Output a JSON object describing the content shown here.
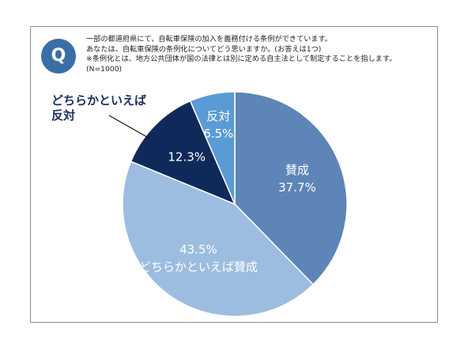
{
  "question": {
    "badge": "Q",
    "lines": [
      "一部の都道府県にて、自転車保険の加入を義務付ける条例ができています。",
      "あなたは、自転車保険の条例化についてどう思いますか。(お答えは1つ)",
      "※条例化とは、地方公共団体が国の法律とは別に定める自主法として制定することを指します。",
      "(N=1000)"
    ]
  },
  "chart_data": {
    "type": "pie",
    "title": "",
    "n": 1000,
    "start": "12 o'clock, clockwise",
    "slices": [
      {
        "label": "賛成",
        "value": 37.7,
        "value_text": "37.7%",
        "color": "#5d85b8",
        "label_inside": true
      },
      {
        "label": "どちらかといえば賛成",
        "value": 43.5,
        "value_text": "43.5%",
        "color": "#9dbde0",
        "label_inside": true
      },
      {
        "label": "どちらかといえば反対",
        "value": 12.3,
        "value_text": "12.3%",
        "color": "#0f2a5a",
        "label_inside": false
      },
      {
        "label": "反対",
        "value": 6.5,
        "value_text": "6.5%",
        "color": "#5b9bd5",
        "label_inside": true
      }
    ],
    "callout_label_lines": [
      "どちらかといえば",
      "反対"
    ]
  }
}
